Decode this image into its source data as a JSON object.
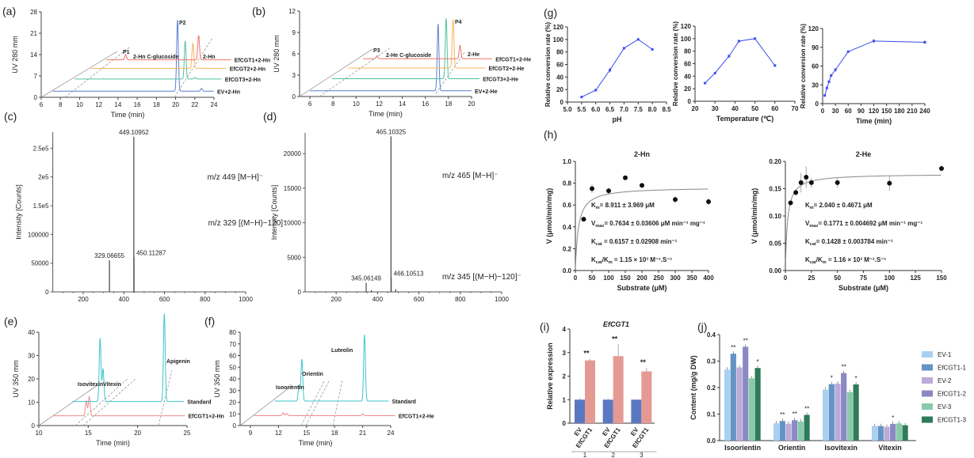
{
  "chart_data": [
    {
      "panel": "(a)",
      "type": "line",
      "xlabel": "Time (min)",
      "ylabel": "UV 280 mm",
      "xlim": [
        6,
        24
      ],
      "ylim": [
        0,
        28
      ],
      "xticks": [
        "6",
        "8",
        "10",
        "12",
        "14",
        "16",
        "18",
        "20",
        "22",
        "24"
      ],
      "yticks": [
        "0",
        "7",
        "14",
        "21",
        "28"
      ],
      "traces": [
        {
          "name": "EV+2-Hn",
          "color": "#5b7fd0",
          "baseline": 2,
          "start": 7.2,
          "end": 24.0,
          "peaks": [
            [
              20.2,
              25.5
            ],
            [
              22.7,
              2.9
            ]
          ]
        },
        {
          "name": "EfCGT3+2-Hn",
          "color": "#4cc39a",
          "baseline": 6,
          "start": 9.5,
          "end": 24.8,
          "peaks": [
            [
              21.0,
              18.5
            ],
            [
              22.0,
              6.5
            ]
          ]
        },
        {
          "name": "EfCGT2+2-Hn",
          "color": "#f7b55a",
          "baseline": 9.5,
          "start": 11.2,
          "end": 25.3,
          "peaks": [
            [
              21.8,
              17.8
            ]
          ]
        },
        {
          "name": "EfCGT1+2-Hn",
          "color": "#f0736b",
          "baseline": 12.3,
          "start": 12.8,
          "end": 25.8,
          "peaks": [
            [
              14.8,
              14.0
            ],
            [
              22.4,
              20.3
            ]
          ]
        }
      ],
      "annotations": [
        "P1",
        "2-Hn C-glucoside",
        "P2",
        "2-Hn"
      ]
    },
    {
      "panel": "(b)",
      "type": "line",
      "xlabel": "Time (min)",
      "ylabel": "UV 280 mm",
      "xlim": [
        5.1,
        20
      ],
      "ylim": [
        0,
        12
      ],
      "xticks": [
        "6",
        "8",
        "10",
        "12",
        "14",
        "16",
        "18",
        "20"
      ],
      "yticks": [
        "0",
        "3",
        "6",
        "9",
        "12"
      ],
      "traces": [
        {
          "name": "EV+2-He",
          "color": "#5b7fd0",
          "baseline": 0.8,
          "start": 6.0,
          "end": 20.0,
          "peaks": [
            [
              17.1,
              10.2
            ]
          ]
        },
        {
          "name": "EfCGT3+2-He",
          "color": "#4cc39a",
          "baseline": 2.5,
          "start": 7.9,
          "end": 20.7,
          "peaks": [
            [
              17.8,
              11.0
            ]
          ]
        },
        {
          "name": "EfCGT2+2-He",
          "color": "#f7b55a",
          "baseline": 4.0,
          "start": 9.3,
          "end": 21.2,
          "peaks": [
            [
              18.4,
              10.8
            ]
          ]
        },
        {
          "name": "EfCGT1+2-He",
          "color": "#f0736b",
          "baseline": 5.3,
          "start": 10.6,
          "end": 21.8,
          "peaks": [
            [
              11.8,
              5.7
            ],
            [
              19.0,
              7.2
            ]
          ]
        }
      ],
      "annotations": [
        "P3",
        "2-He C-glucoside",
        "P4",
        "2-He"
      ]
    },
    {
      "panel": "(c)",
      "type": "bar",
      "xlabel": "",
      "ylabel": "Intensity [Counts]",
      "xlim": [
        50,
        1000
      ],
      "ylim": [
        0,
        278000
      ],
      "xticks": [
        "200",
        "400",
        "600",
        "800",
        "1000"
      ],
      "yticks": [
        "0",
        "50000",
        "100000",
        "1.5e5",
        "2e5",
        "2.5e5"
      ],
      "peaks": [
        {
          "mz": 329.06655,
          "intensity": 55000,
          "label": "329.06655"
        },
        {
          "mz": 449.10952,
          "intensity": 270000,
          "label": "449.10952"
        },
        {
          "mz": 450.11287,
          "intensity": 60000,
          "label": "450.11287"
        }
      ],
      "annotations": [
        "m/z 449 [M−H]⁻",
        "m/z 329 [(M−H)−120]⁻"
      ]
    },
    {
      "panel": "(d)",
      "type": "bar",
      "xlabel": "",
      "ylabel": "Intensity [Counts]",
      "xlim": [
        50,
        1000
      ],
      "ylim": [
        0,
        23000
      ],
      "xticks": [
        "200",
        "400",
        "600",
        "800",
        "1000"
      ],
      "yticks": [
        "0",
        "5000",
        "10000",
        "15000",
        "20000"
      ],
      "peaks": [
        {
          "mz": 345.06149,
          "intensity": 1300,
          "label": "345.06149"
        },
        {
          "mz": 465.10325,
          "intensity": 22500,
          "label": "465.10325"
        },
        {
          "mz": 466.10513,
          "intensity": 2000,
          "label": "466.10513"
        },
        {
          "mz": 488,
          "intensity": 400,
          "label": ""
        },
        {
          "mz": 370,
          "intensity": 250,
          "label": ""
        }
      ],
      "annotations": [
        "m/z 465 [M−H]⁻",
        "m/z 345 [(M−H)−120]⁻"
      ]
    },
    {
      "panel": "(e)",
      "type": "line",
      "xlabel": "Time (min)",
      "ylabel": "UV 350 mm",
      "xlim": [
        10,
        25
      ],
      "ylim": [
        0,
        40
      ],
      "xticks": [
        "10",
        "15",
        "20",
        "25"
      ],
      "yticks": [
        "0",
        "10",
        "20",
        "30",
        "40"
      ],
      "traces": [
        {
          "name": "EfCGT1+2-Hn",
          "color": "#f08a88",
          "baseline": 4.2,
          "start": 11.4,
          "end": 24.8,
          "peaks": [
            [
              14.8,
              10.6
            ],
            [
              15.1,
              12.4
            ]
          ]
        },
        {
          "name": "Standard",
          "color": "#3cc6cc",
          "baseline": 10.3,
          "start": 13.4,
          "end": 24.7,
          "peaks": [
            [
              16.2,
              37.5
            ],
            [
              16.5,
              24.3
            ],
            [
              22.7,
              48.0
            ]
          ]
        }
      ],
      "annotations": [
        "Isovitexin",
        "Vitexin",
        "Apigenin"
      ]
    },
    {
      "panel": "(f)",
      "type": "line",
      "xlabel": "Time (min)",
      "ylabel": "UV 350 mm",
      "xlim": [
        7.9,
        24
      ],
      "ylim": [
        0,
        80
      ],
      "xticks": [
        "9",
        "12",
        "15",
        "18",
        "21",
        "24"
      ],
      "yticks": [
        "0",
        "10",
        "20",
        "30",
        "40",
        "50",
        "60",
        "70",
        "80"
      ],
      "traces": [
        {
          "name": "EfCGT1+2-He",
          "color": "#f08a88",
          "baseline": 8.5,
          "start": 9.4,
          "end": 24.5,
          "peaks": [
            [
              12.5,
              11.0
            ],
            [
              12.9,
              10.5
            ],
            [
              21.0,
              10.0
            ]
          ]
        },
        {
          "name": "Standard",
          "color": "#3cc6cc",
          "baseline": 21,
          "start": 11.6,
          "end": 23.8,
          "peaks": [
            [
              14.2,
              34.0
            ],
            [
              14.5,
              57.0
            ],
            [
              21.2,
              78.0
            ]
          ]
        }
      ],
      "annotations": [
        "Isoorientin",
        "Orientin",
        "Luteolin"
      ]
    },
    {
      "panel": "(g)",
      "type": "line",
      "xlabel": "pH",
      "ylabel": "Relative conversion rate (%)",
      "xlim": [
        5.0,
        8.5
      ],
      "ylim": [
        0,
        120
      ],
      "color": "#3b4cf0",
      "xticks": [
        "5.0",
        "5.5",
        "6.0",
        "6.5",
        "7.0",
        "7.5",
        "8.0",
        "8.5"
      ],
      "yticks": [
        "0",
        "20",
        "40",
        "60",
        "80",
        "100",
        "120"
      ],
      "x": [
        5.5,
        6.0,
        6.5,
        7.0,
        7.5,
        8.0
      ],
      "y": [
        8,
        19,
        51,
        86,
        100,
        84
      ],
      "err": [
        1,
        2,
        4,
        1,
        1,
        2
      ]
    },
    {
      "panel": "",
      "type": "line",
      "xlabel": "Temperature (℃)",
      "ylabel": "Relative conversion rate (%)",
      "xlim": [
        20,
        70
      ],
      "ylim": [
        0,
        120
      ],
      "color": "#3b4cf0",
      "xticks": [
        "20",
        "30",
        "40",
        "50",
        "60",
        "70"
      ],
      "yticks": [
        "0",
        "20",
        "40",
        "60",
        "80",
        "100",
        "120"
      ],
      "x": [
        25,
        30,
        37,
        42,
        50,
        60
      ],
      "y": [
        29,
        45,
        72,
        96,
        100,
        57
      ],
      "err": [
        1,
        1,
        3,
        2,
        1,
        2
      ]
    },
    {
      "panel": "",
      "type": "line",
      "xlabel": "Time (min)",
      "ylabel": "Relative conversion rate (%)",
      "xlim": [
        0,
        240
      ],
      "ylim": [
        0,
        120
      ],
      "color": "#3b4cf0",
      "xticks": [
        "0",
        "30",
        "60",
        "90",
        "120",
        "150",
        "180",
        "210",
        "240"
      ],
      "yticks": [
        "0",
        "30",
        "60",
        "90",
        "120"
      ],
      "x": [
        5,
        10,
        15,
        20,
        30,
        60,
        120,
        240
      ],
      "y": [
        13,
        25,
        35,
        45,
        54,
        83,
        100,
        98
      ],
      "err": [
        2,
        1,
        2,
        1,
        3,
        2,
        3,
        3
      ]
    },
    {
      "panel": "(h)",
      "type": "scatter",
      "title": "2-Hn",
      "xlabel": "Substrate (μM)",
      "ylabel": "V (μmol/min/mg)",
      "xlim": [
        0,
        400
      ],
      "ylim": [
        0,
        1.0
      ],
      "xticks": [
        "0",
        "50",
        "100",
        "150",
        "200",
        "250",
        "300",
        "350",
        "400"
      ],
      "yticks": [
        "0.0",
        "0.2",
        "0.4",
        "0.6",
        "0.8",
        "1.0"
      ],
      "x": [
        25,
        50,
        100,
        150,
        200,
        300,
        400
      ],
      "y": [
        0.47,
        0.75,
        0.73,
        0.85,
        0.78,
        0.65,
        0.63
      ],
      "err": [
        0.02,
        0.04,
        0.03,
        0.01,
        0.02,
        0.03,
        0.03
      ],
      "fit": {
        "model": "Michaelis-Menten",
        "Vmax": 0.7634,
        "Km": 8.911
      },
      "equations": [
        [
          {
            "t": "K"
          },
          {
            "t": "m",
            "sub": true
          },
          {
            "t": "= 8.911 ± 3.969 μM"
          }
        ],
        [
          {
            "t": "V"
          },
          {
            "t": "max",
            "sub": true
          },
          {
            "t": "= 0.7634 ± 0.03606 μM min⁻¹ mg⁻¹"
          }
        ],
        [
          {
            "t": "K"
          },
          {
            "t": "cat",
            "sub": true
          },
          {
            "t": " = 0.6157 ± 0.02908 min⁻¹"
          }
        ],
        [
          {
            "t": "K"
          },
          {
            "t": "cat",
            "sub": true
          },
          {
            "t": "/K"
          },
          {
            "t": "m",
            "sub": true
          },
          {
            "t": " = 1.15 × 10³ M⁻¹.S⁻¹"
          }
        ]
      ]
    },
    {
      "panel": "",
      "type": "scatter",
      "title": "2-He",
      "xlabel": "Substrate (μM)",
      "ylabel": "V (μmol/min/mg)",
      "xlim": [
        0,
        150
      ],
      "ylim": [
        0,
        0.2
      ],
      "xticks": [
        "0",
        "25",
        "50",
        "75",
        "100",
        "125",
        "150"
      ],
      "yticks": [
        "0.00",
        "0.05",
        "0.10",
        "0.15",
        "0.20"
      ],
      "x": [
        5,
        10,
        15,
        20,
        25,
        50,
        100,
        150
      ],
      "y": [
        0.124,
        0.143,
        0.161,
        0.171,
        0.161,
        0.161,
        0.16,
        0.187
      ],
      "err": [
        0.002,
        0.006,
        0.018,
        0.02,
        0.009,
        0.009,
        0.014,
        0.005
      ],
      "fit": {
        "model": "Michaelis-Menten",
        "Vmax": 0.1771,
        "Km": 2.04
      },
      "equations": [
        [
          {
            "t": "K"
          },
          {
            "t": "m",
            "sub": true
          },
          {
            "t": "= 2.040 ± 0.4671 μM"
          }
        ],
        [
          {
            "t": "V"
          },
          {
            "t": "max",
            "sub": true
          },
          {
            "t": "= 0.1771 ± 0.004692 μM min⁻¹ mg⁻¹"
          }
        ],
        [
          {
            "t": "K"
          },
          {
            "t": "cat",
            "sub": true
          },
          {
            "t": "= 0.1428 ± 0.003784 min⁻¹"
          }
        ],
        [
          {
            "t": "K"
          },
          {
            "t": "cat",
            "sub": true
          },
          {
            "t": "/K"
          },
          {
            "t": "m",
            "sub": true
          },
          {
            "t": " = 1.16 × 10³ M⁻¹.S⁻¹"
          }
        ]
      ]
    },
    {
      "panel": "(i)",
      "type": "bar",
      "title": "EfCGT1",
      "xlabel": "",
      "ylabel": "Relative expression",
      "ylim": [
        0,
        4
      ],
      "yticks": [
        "0",
        "1",
        "2",
        "3",
        "4"
      ],
      "groups": [
        "1",
        "2",
        "3"
      ],
      "series": [
        {
          "name": "EV",
          "color": "#5a78c2",
          "values": [
            1.0,
            1.0,
            1.0
          ],
          "err": [
            0.06,
            0.06,
            0.02
          ]
        },
        {
          "name": "EfCGT1",
          "color": "#e49a92",
          "values": [
            2.67,
            2.85,
            2.2
          ],
          "err": [
            0.07,
            0.5,
            0.15
          ]
        }
      ],
      "significance": [
        "**",
        "**",
        "**"
      ]
    },
    {
      "panel": "(j)",
      "type": "bar",
      "xlabel": "",
      "ylabel": "Content (mg/g DW)",
      "ylim": [
        0,
        0.4
      ],
      "yticks": [
        "0.0",
        "0.1",
        "0.2",
        "0.3",
        "0.4"
      ],
      "categories": [
        "Isoorientin",
        "Orientin",
        "Isovitexin",
        "Vitexin"
      ],
      "legend": "right",
      "series": [
        {
          "name": "EV-1",
          "color": "#a9d0f0",
          "values": [
            0.268,
            0.065,
            0.192,
            0.055
          ],
          "sig": [
            "",
            "",
            "",
            ""
          ]
        },
        {
          "name": "EfCGT1-1",
          "color": "#6394c4",
          "values": [
            0.328,
            0.074,
            0.213,
            0.055
          ],
          "sig": [
            "**",
            "**",
            "*",
            ""
          ]
        },
        {
          "name": "EV-2",
          "color": "#bcaad8",
          "values": [
            0.276,
            0.064,
            0.215,
            0.052
          ],
          "sig": [
            "",
            "",
            "",
            ""
          ]
        },
        {
          "name": "EfCGT1-2",
          "color": "#8b89c3",
          "values": [
            0.354,
            0.077,
            0.255,
            0.063
          ],
          "sig": [
            "**",
            "**",
            "**",
            "*"
          ]
        },
        {
          "name": "EV-3",
          "color": "#88cbab",
          "values": [
            0.235,
            0.072,
            0.183,
            0.065
          ],
          "sig": [
            "",
            "",
            "",
            ""
          ]
        },
        {
          "name": "EfCGT1-3",
          "color": "#2f7b5c",
          "values": [
            0.274,
            0.097,
            0.212,
            0.058
          ],
          "sig": [
            "*",
            "**",
            "*",
            ""
          ]
        }
      ]
    }
  ]
}
